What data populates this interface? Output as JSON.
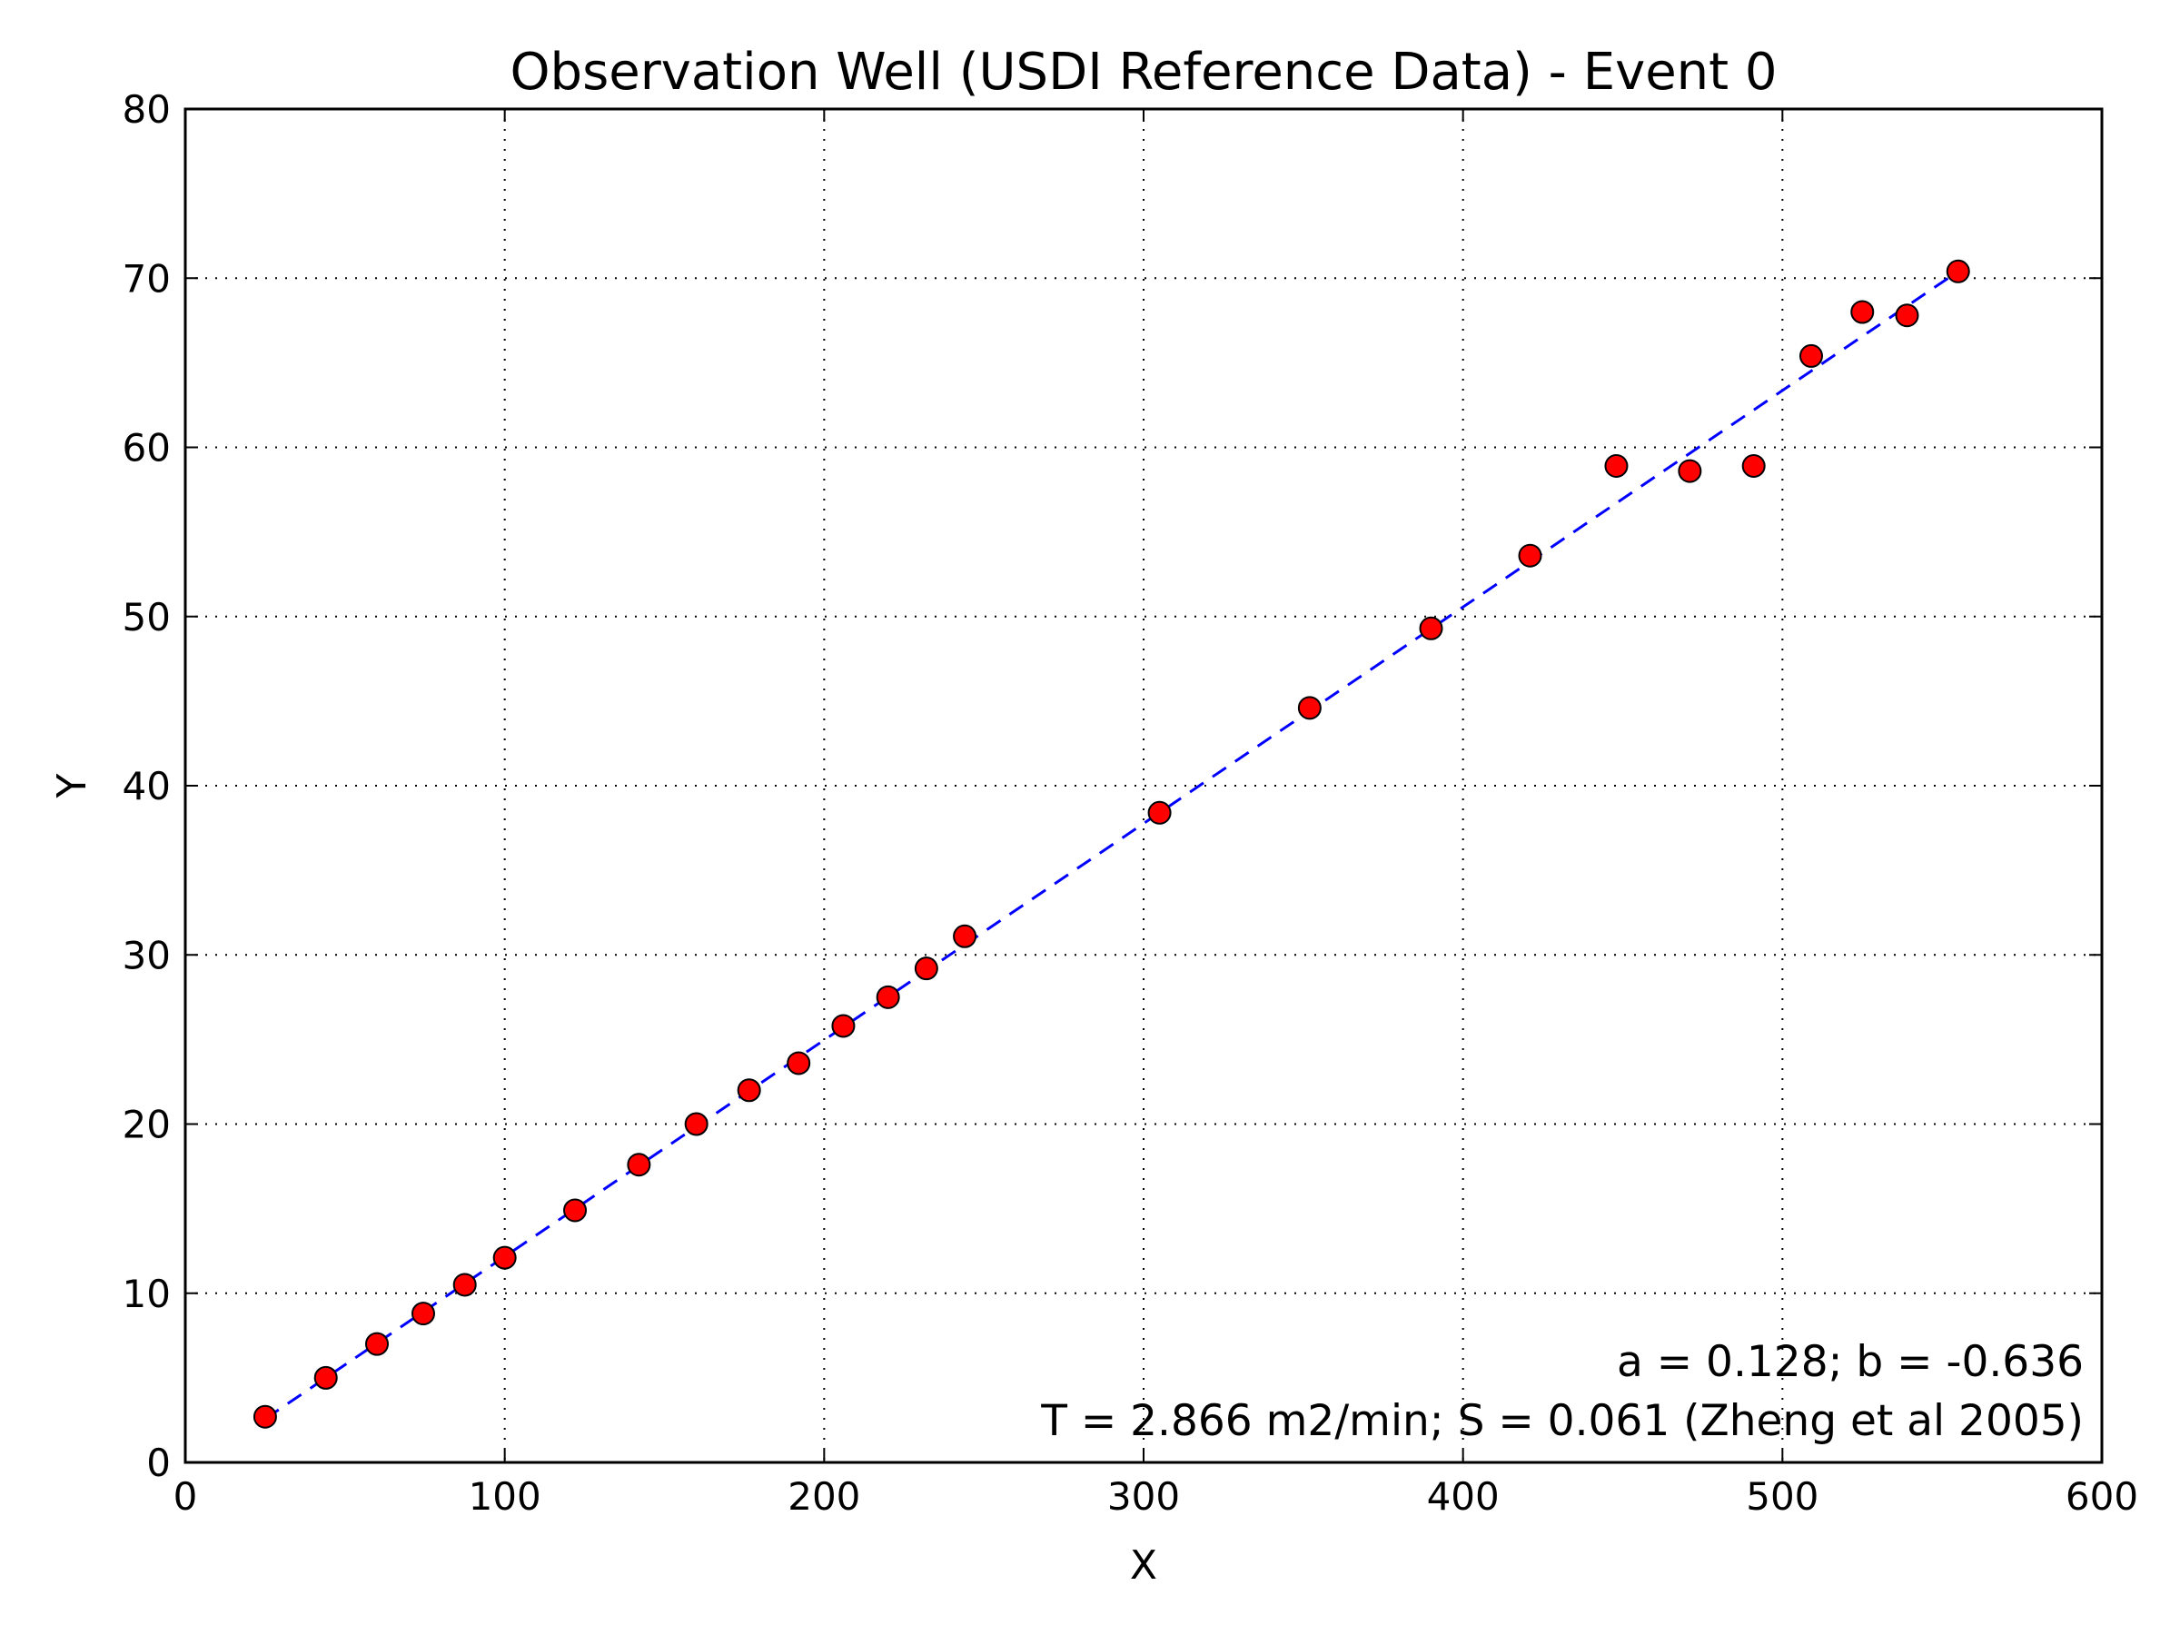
{
  "chart_data": {
    "type": "scatter",
    "title": "Observation Well (USDI Reference Data) - Event 0",
    "xlabel": "X",
    "ylabel": "Y",
    "xlim": [
      0,
      600
    ],
    "ylim": [
      0,
      80
    ],
    "xticks": [
      0,
      100,
      200,
      300,
      400,
      500,
      600
    ],
    "yticks": [
      0,
      10,
      20,
      30,
      40,
      50,
      60,
      70,
      80
    ],
    "grid": true,
    "series": [
      {
        "kind": "scatter",
        "color": "#ff0000",
        "x": [
          25,
          44,
          60,
          74.5,
          87.5,
          100,
          122,
          142,
          160,
          176.5,
          192,
          206,
          220,
          232,
          244,
          305,
          352,
          390,
          421,
          448,
          471,
          491,
          509,
          525,
          539,
          555
        ],
        "y": [
          2.7,
          5.0,
          7.0,
          8.8,
          10.5,
          12.1,
          14.9,
          17.6,
          20.0,
          22.0,
          23.6,
          25.8,
          27.5,
          29.2,
          31.1,
          38.4,
          44.6,
          49.3,
          53.6,
          58.9,
          58.6,
          58.9,
          65.4,
          68.0,
          67.8,
          70.4
        ]
      },
      {
        "kind": "line",
        "style": "dashed",
        "color": "#0000ff",
        "x": [
          25,
          555
        ],
        "y": [
          2.57,
          70.4
        ]
      }
    ],
    "annotations": [
      "a = 0.128; b = -0.636",
      "T = 2.866 m2/min; S = 0.061 (Zheng et al 2005)"
    ]
  }
}
